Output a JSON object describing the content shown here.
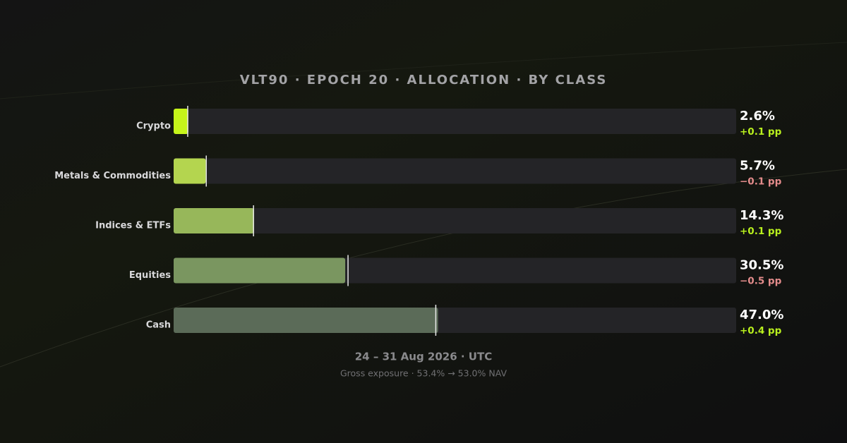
{
  "chart_data": {
    "type": "bar",
    "orientation": "horizontal",
    "title": "VLT90 · EPOCH 20 · ALLOCATION · BY CLASS",
    "subtitle": "24 – 31 Aug 2026 · UTC",
    "footnote": "Gross exposure · 53.4% → 53.0% NAV",
    "categories": [
      "Crypto",
      "Metals & Commodities",
      "Indices & ETFs",
      "Equities",
      "Cash"
    ],
    "values": [
      2.6,
      5.7,
      14.3,
      30.5,
      47.0
    ],
    "value_labels": [
      "2.6%",
      "5.7%",
      "14.3%",
      "30.5%",
      "47.0%"
    ],
    "changes": [
      0.1,
      -0.1,
      0.1,
      -0.5,
      0.4
    ],
    "change_labels": [
      "+0.1 pp",
      "−0.1 pp",
      "+0.1 pp",
      "−0.5 pp",
      "+0.4 pp"
    ],
    "prior": [
      2.5,
      5.8,
      14.2,
      31.0,
      46.6
    ],
    "colors": [
      "#c6f41a",
      "#b4d54f",
      "#97b75a",
      "#7a9660",
      "#5b6b58"
    ],
    "xlim": [
      0,
      100
    ]
  }
}
